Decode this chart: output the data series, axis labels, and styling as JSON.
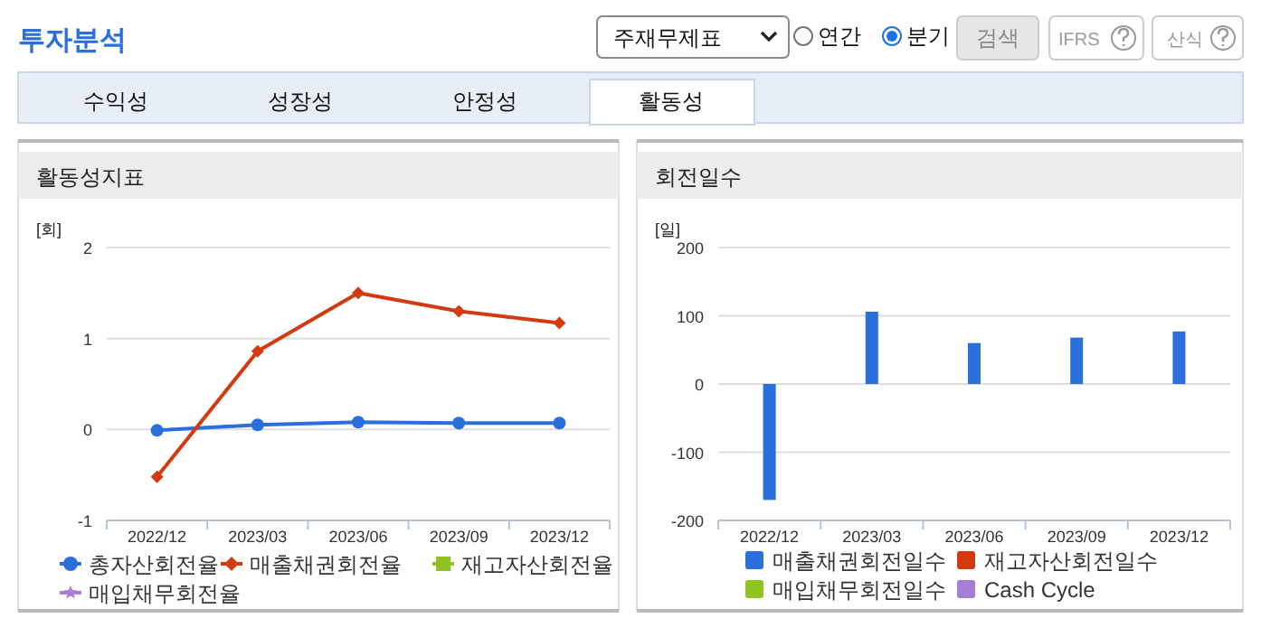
{
  "chart_data": [
    {
      "type": "other",
      "title": "투자분석",
      "annotations": [
        "주재무제표",
        "연간",
        "분기",
        "검색",
        "IFRS",
        "산식",
        "수익성",
        "성장성",
        "안정성",
        "활동성"
      ]
    },
    {
      "type": "line",
      "title": "활동성지표",
      "ylabel": "[회]",
      "categories": [
        "2022/12",
        "2023/03",
        "2023/06",
        "2023/09",
        "2023/12"
      ],
      "ylim": [
        -1,
        2
      ],
      "yticks": [
        -1,
        0,
        1,
        2
      ],
      "grid": "y",
      "legend": "bottom",
      "series": [
        {
          "name": "총자산회전율",
          "color": "#2a6fdb",
          "marker": "circle",
          "values": [
            -0.01,
            0.05,
            0.08,
            0.07,
            0.07
          ]
        },
        {
          "name": "매출채권회전율",
          "color": "#d43a0f",
          "marker": "diamond",
          "values": [
            -0.52,
            0.86,
            1.5,
            1.3,
            1.17
          ]
        },
        {
          "name": "재고자산회전율",
          "color": "#8dc21f",
          "marker": "square",
          "values": [
            null,
            null,
            null,
            null,
            null
          ]
        },
        {
          "name": "매입채무회전율",
          "color": "#a57fd6",
          "marker": "star",
          "values": [
            null,
            null,
            null,
            null,
            null
          ]
        }
      ]
    },
    {
      "type": "bar",
      "title": "회전일수",
      "ylabel": "[일]",
      "categories": [
        "2022/12",
        "2023/03",
        "2023/06",
        "2023/09",
        "2023/12"
      ],
      "ylim": [
        -200,
        200
      ],
      "yticks": [
        -200,
        -100,
        0,
        100,
        200
      ],
      "grid": "y",
      "legend": "bottom",
      "series": [
        {
          "name": "매출채권회전일수",
          "color": "#2a6fdb",
          "values": [
            -170,
            106,
            60,
            68,
            77
          ]
        },
        {
          "name": "재고자산회전일수",
          "color": "#d43a0f",
          "values": [
            null,
            null,
            null,
            null,
            null
          ]
        },
        {
          "name": "매입채무회전일수",
          "color": "#8dc21f",
          "values": [
            null,
            null,
            null,
            null,
            null
          ]
        },
        {
          "name": "Cash Cycle",
          "color": "#a57fd6",
          "values": [
            null,
            null,
            null,
            null,
            null
          ]
        }
      ]
    }
  ]
}
